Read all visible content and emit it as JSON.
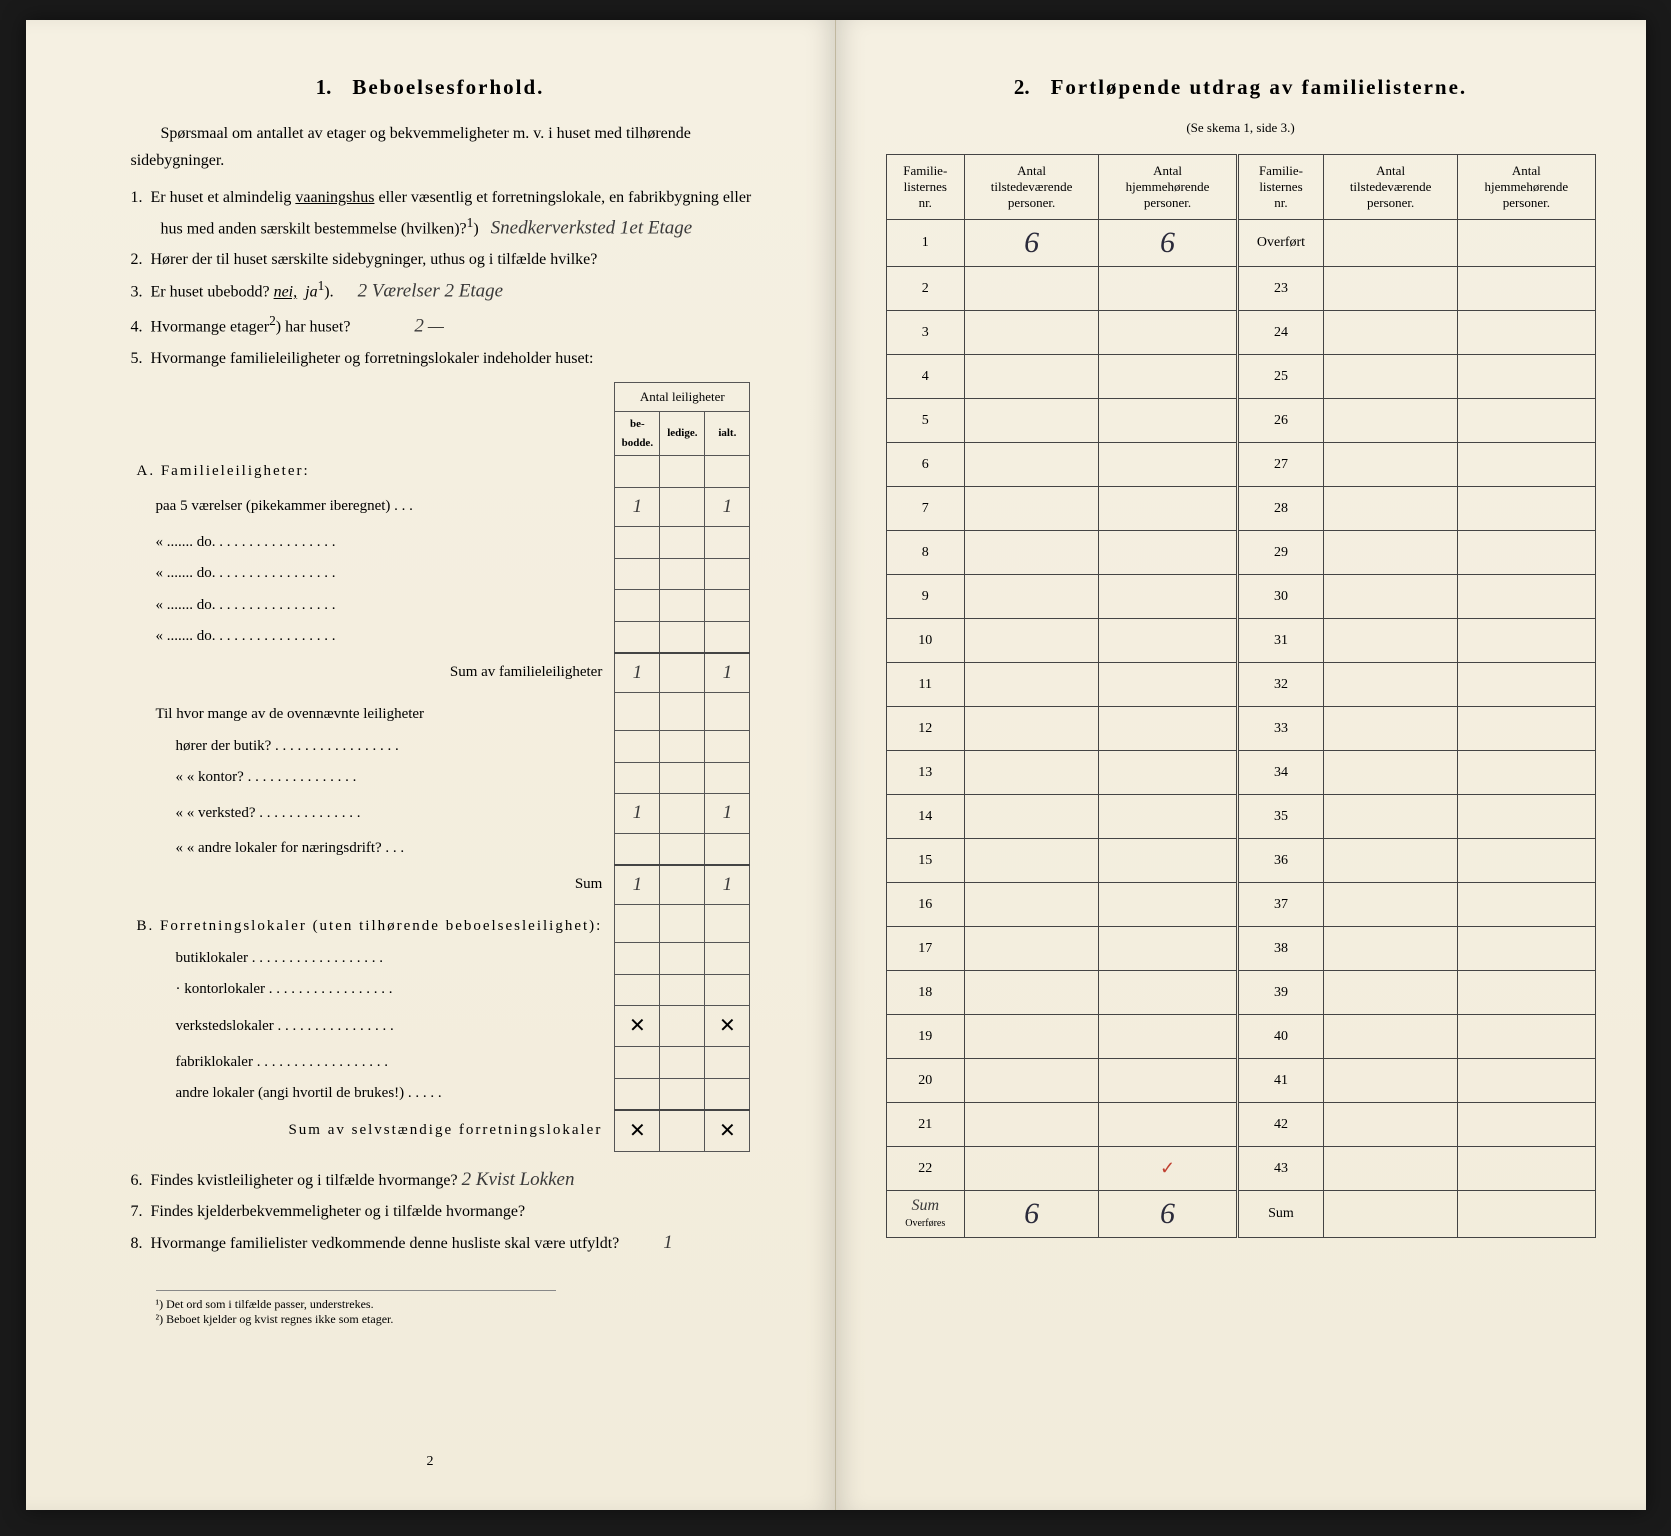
{
  "left": {
    "title_num": "1.",
    "title": "Beboelsesforhold.",
    "intro": "Spørsmaal om antallet av etager og bekvemmeligheter m. v. i huset med tilhørende sidebygninger.",
    "q1_prefix": "1.",
    "q1": "Er huset et almindelig ",
    "q1_vaaningshus": "vaaningshus",
    "q1_cont": " eller væsentlig et forretningslokale, en fabrikbygning eller hus med anden særskilt bestemmelse (hvilken)?",
    "q1_sup": "1",
    "q1_answer": "Snedkerverksted 1et Etage",
    "q2_prefix": "2.",
    "q2": "Hører der til huset særskilte sidebygninger, uthus og i tilfælde hvilke?",
    "q2_blank": "",
    "q3_prefix": "3.",
    "q3": "Er huset ubebodd?  ",
    "q3_nei": "nei,",
    "q3_ja": "ja",
    "q3_sup": "1",
    "q3_answer": "2 Værelser 2 Etage",
    "q4_prefix": "4.",
    "q4": "Hvormange etager",
    "q4_sup": "2",
    "q4_cont": ") har huset?",
    "q4_answer": "2",
    "q5_prefix": "5.",
    "q5": "Hvormange familieleiligheter og forretningslokaler indeholder huset:",
    "small_table": {
      "header": "Antal leiligheter",
      "cols": [
        "be-\nbodde.",
        "ledige.",
        "ialt."
      ],
      "sectionA": "A. Familieleiligheter:",
      "rowA1": "paa 5 værelser (pikekammer iberegnet) . . .",
      "rowA1_vals": [
        "1",
        "",
        "1"
      ],
      "rowA_do": [
        "«   .......   do.   . . . . . . . . . . . . . . . .",
        "«   .......   do.   . . . . . . . . . . . . . . . .",
        "«   .......   do.   . . . . . . . . . . . . . . . .",
        "«   .......   do.   . . . . . . . . . . . . . . . ."
      ],
      "sumA": "Sum av familieleiligheter",
      "sumA_vals": [
        "1",
        "",
        "1"
      ],
      "midQ": "Til hvor mange av de ovennævnte leiligheter",
      "midRows": [
        "hører der butik? . . . . . . . . . . . . . . . . .",
        "«       « kontor? . . . . . . . . . . . . . . .",
        "«       « verksted? . . . . . . . . . . . . . .",
        "«       « andre lokaler for næringsdrift? . . ."
      ],
      "midVals": [
        [
          "",
          "",
          ""
        ],
        [
          "",
          "",
          ""
        ],
        [
          "1",
          "",
          "1"
        ],
        [
          "",
          "",
          ""
        ]
      ],
      "midSum": "Sum",
      "midSum_vals": [
        "1",
        "",
        "1"
      ],
      "sectionB": "B. Forretningslokaler (uten tilhørende beboelsesleilighet):",
      "rowsB": [
        "butiklokaler . . . . . . . . . . . . . . . . . .",
        "· kontorlokaler . . . . . . . . . . . . . . . . .",
        "verkstedslokaler . . . . . . . . . . . . . . . .",
        "fabriklokaler . . . . . . . . . . . . . . . . . .",
        "andre lokaler (angi hvortil de brukes!) . . . . ."
      ],
      "valsB": [
        [
          "",
          "",
          ""
        ],
        [
          "",
          "",
          ""
        ],
        [
          "✕",
          "",
          "✕"
        ],
        [
          "",
          "",
          ""
        ],
        [
          "",
          "",
          ""
        ]
      ],
      "sumB": "Sum av selvstændige forretningslokaler",
      "sumB_vals": [
        "✕",
        "",
        "✕"
      ]
    },
    "q6_prefix": "6.",
    "q6": "Findes kvistleiligheter og i tilfælde hvormange?",
    "q6_answer": "2 Kvist Lokken",
    "q7_prefix": "7.",
    "q7": "Findes kjelderbekvemmeligheter og i tilfælde hvormange?",
    "q8_prefix": "8.",
    "q8": "Hvormange familielister vedkommende denne husliste skal være utfyldt?",
    "q8_answer": "1",
    "foot1": "¹) Det ord som i tilfælde passer, understrekes.",
    "foot2": "²) Beboet kjelder og kvist regnes ikke som etager.",
    "page_num": "2"
  },
  "right": {
    "title_num": "2.",
    "title": "Fortløpende utdrag av familielisterne.",
    "sub": "(Se skema 1, side 3.)",
    "headers": [
      "Familie-\nlisternes\nnr.",
      "Antal\ntilstedeværende\npersoner.",
      "Antal\nhjemmehørende\npersoner.",
      "Familie-\nlisternes\nnr.",
      "Antal\ntilstedeværende\npersoner.",
      "Antal\nhjemmehørende\npersoner."
    ],
    "rows": [
      {
        "l": "1",
        "lv1": "6",
        "lv2": "6",
        "r": "Overført",
        "rv1": "",
        "rv2": ""
      },
      {
        "l": "2",
        "lv1": "",
        "lv2": "",
        "r": "23",
        "rv1": "",
        "rv2": ""
      },
      {
        "l": "3",
        "lv1": "",
        "lv2": "",
        "r": "24",
        "rv1": "",
        "rv2": ""
      },
      {
        "l": "4",
        "lv1": "",
        "lv2": "",
        "r": "25",
        "rv1": "",
        "rv2": ""
      },
      {
        "l": "5",
        "lv1": "",
        "lv2": "",
        "r": "26",
        "rv1": "",
        "rv2": ""
      },
      {
        "l": "6",
        "lv1": "",
        "lv2": "",
        "r": "27",
        "rv1": "",
        "rv2": ""
      },
      {
        "l": "7",
        "lv1": "",
        "lv2": "",
        "r": "28",
        "rv1": "",
        "rv2": ""
      },
      {
        "l": "8",
        "lv1": "",
        "lv2": "",
        "r": "29",
        "rv1": "",
        "rv2": ""
      },
      {
        "l": "9",
        "lv1": "",
        "lv2": "",
        "r": "30",
        "rv1": "",
        "rv2": ""
      },
      {
        "l": "10",
        "lv1": "",
        "lv2": "",
        "r": "31",
        "rv1": "",
        "rv2": ""
      },
      {
        "l": "11",
        "lv1": "",
        "lv2": "",
        "r": "32",
        "rv1": "",
        "rv2": ""
      },
      {
        "l": "12",
        "lv1": "",
        "lv2": "",
        "r": "33",
        "rv1": "",
        "rv2": ""
      },
      {
        "l": "13",
        "lv1": "",
        "lv2": "",
        "r": "34",
        "rv1": "",
        "rv2": ""
      },
      {
        "l": "14",
        "lv1": "",
        "lv2": "",
        "r": "35",
        "rv1": "",
        "rv2": ""
      },
      {
        "l": "15",
        "lv1": "",
        "lv2": "",
        "r": "36",
        "rv1": "",
        "rv2": ""
      },
      {
        "l": "16",
        "lv1": "",
        "lv2": "",
        "r": "37",
        "rv1": "",
        "rv2": ""
      },
      {
        "l": "17",
        "lv1": "",
        "lv2": "",
        "r": "38",
        "rv1": "",
        "rv2": ""
      },
      {
        "l": "18",
        "lv1": "",
        "lv2": "",
        "r": "39",
        "rv1": "",
        "rv2": ""
      },
      {
        "l": "19",
        "lv1": "",
        "lv2": "",
        "r": "40",
        "rv1": "",
        "rv2": ""
      },
      {
        "l": "20",
        "lv1": "",
        "lv2": "",
        "r": "41",
        "rv1": "",
        "rv2": ""
      },
      {
        "l": "21",
        "lv1": "",
        "lv2": "",
        "r": "42",
        "rv1": "",
        "rv2": ""
      },
      {
        "l": "22",
        "lv1": "",
        "lv2": "✓",
        "r": "43",
        "rv1": "",
        "rv2": ""
      }
    ],
    "sum_label_left": "Sum",
    "sum_left": [
      "6",
      "6"
    ],
    "sum_label_right": "Sum",
    "sum_right": [
      "",
      ""
    ],
    "overfores": "Overføres"
  },
  "colors": {
    "paper": "#f4efe0",
    "ink": "#2a2a2a",
    "handwrite": "#3a3a3a",
    "red": "#c04030",
    "border": "#444444"
  }
}
